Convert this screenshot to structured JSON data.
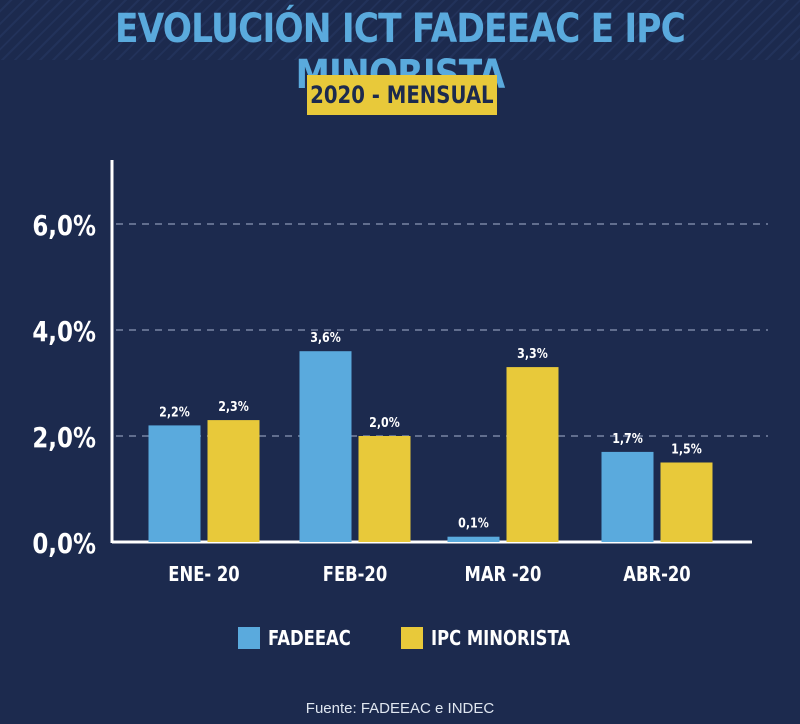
{
  "title": "EVOLUCIÓN ICT FADEEAC E IPC MINORISTA",
  "subtitle": "2020 - MENSUAL",
  "source": "Fuente: FADEEAC e INDEC",
  "colors": {
    "background": "#1c2a4e",
    "fadeeac": "#5aaadd",
    "ipc": "#e8c93a",
    "axis": "#ffffff",
    "grid": "#8a97b5"
  },
  "chart_data": {
    "type": "bar",
    "title": "EVOLUCIÓN ICT FADEEAC E IPC MINORISTA",
    "subtitle": "2020 - MENSUAL",
    "categories": [
      "ENE- 20",
      "FEB-20",
      "MAR -20",
      "ABR-20"
    ],
    "series": [
      {
        "name": "FADEEAC",
        "color": "#5aaadd",
        "values": [
          2.2,
          3.6,
          0.1,
          1.7
        ],
        "labels": [
          "2,2%",
          "3,6%",
          "0,1%",
          "1,7%"
        ]
      },
      {
        "name": "IPC MINORISTA",
        "color": "#e8c93a",
        "values": [
          2.3,
          2.0,
          3.3,
          1.5
        ],
        "labels": [
          "2,3%",
          "2,0%",
          "3,3%",
          "1,5%"
        ]
      }
    ],
    "yticks": [
      0,
      2,
      4,
      6
    ],
    "ytick_labels": [
      "0,0%",
      "2,0%",
      "4,0%",
      "6,0%"
    ],
    "ylim": [
      0,
      7.3
    ],
    "xlabel": "",
    "ylabel": "",
    "grid": true,
    "legend_position": "bottom"
  }
}
